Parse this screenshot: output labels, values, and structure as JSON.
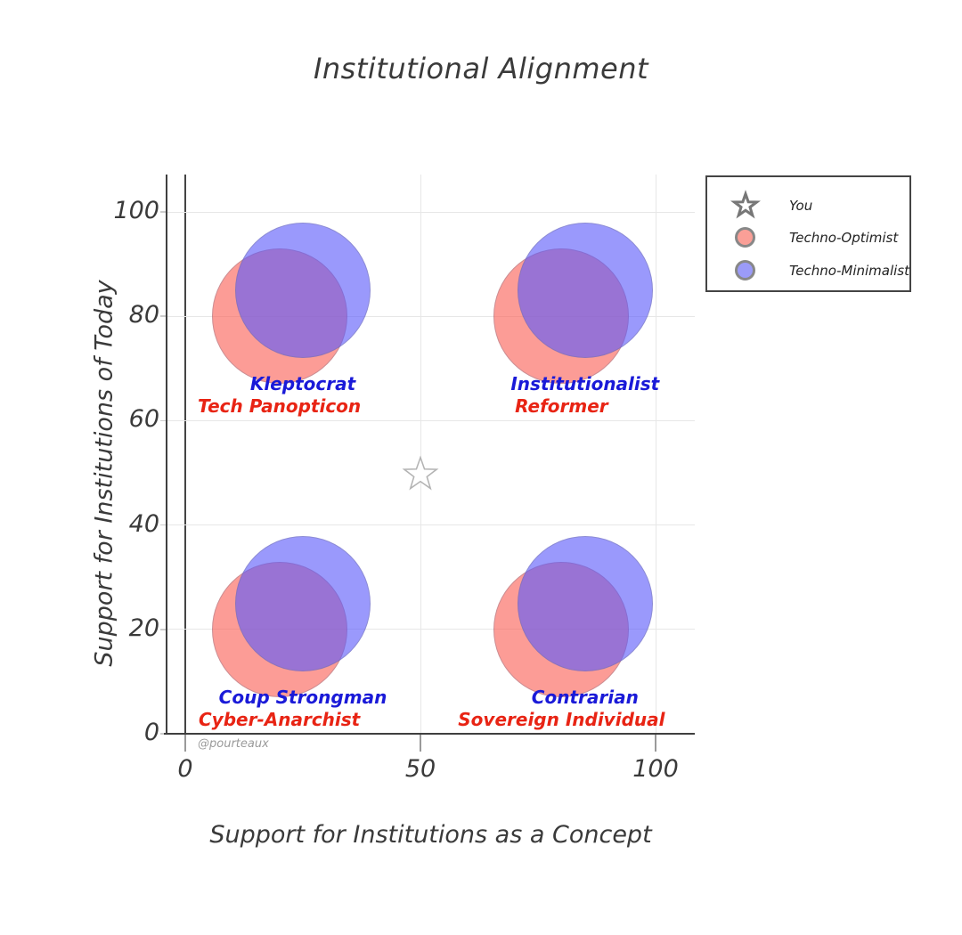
{
  "page": {
    "title": "Institutional Alignment",
    "watermark": "@pourteaux"
  },
  "axes": {
    "x_title": "Support for Institutions as a Concept",
    "y_title": "Support for Institutions of Today"
  },
  "legend": {
    "items": [
      {
        "label": "You",
        "marker": "star-icon"
      },
      {
        "label": "Techno-Optimist",
        "marker": "circle",
        "swatch_color": "#FA9F97"
      },
      {
        "label": "Techno-Minimalist",
        "marker": "circle",
        "swatch_color": "#9B9BF8"
      }
    ]
  },
  "chart_data": {
    "type": "scatter",
    "title": "Institutional Alignment",
    "xlabel": "Support for Institutions as a Concept",
    "ylabel": "Support for Institutions of Today",
    "xlim": [
      -4,
      108
    ],
    "ylim": [
      0,
      107
    ],
    "xticks": [
      0,
      50,
      100
    ],
    "yticks": [
      0,
      20,
      40,
      60,
      80,
      100
    ],
    "grid": true,
    "legend_position": "outside-top-right",
    "bubble_radius_px": 76,
    "series": [
      {
        "name": "You",
        "marker": "star-open",
        "color": "#b3b3b3",
        "points": [
          {
            "x": 50,
            "y": 50
          }
        ]
      },
      {
        "name": "Techno-Optimist",
        "marker": "bubble",
        "color": "rgba(250,95,85,0.62)",
        "points": [
          {
            "x": 20,
            "y": 80,
            "label": "Tech Panopticon"
          },
          {
            "x": 80,
            "y": 80,
            "label": "Reformer"
          },
          {
            "x": 20,
            "y": 20,
            "label": "Cyber-Anarchist"
          },
          {
            "x": 80,
            "y": 20,
            "label": "Sovereign Individual"
          }
        ]
      },
      {
        "name": "Techno-Minimalist",
        "marker": "bubble",
        "color": "rgba(92,90,250,0.62)",
        "points": [
          {
            "x": 25,
            "y": 85,
            "label": "Kleptocrat"
          },
          {
            "x": 85,
            "y": 85,
            "label": "Institutionalist"
          },
          {
            "x": 25,
            "y": 25,
            "label": "Coup Strongman"
          },
          {
            "x": 85,
            "y": 25,
            "label": "Contrarian"
          }
        ]
      }
    ],
    "label_colors": {
      "Techno-Optimist": "#E82414",
      "Techno-Minimalist": "#1A1AD8"
    }
  }
}
